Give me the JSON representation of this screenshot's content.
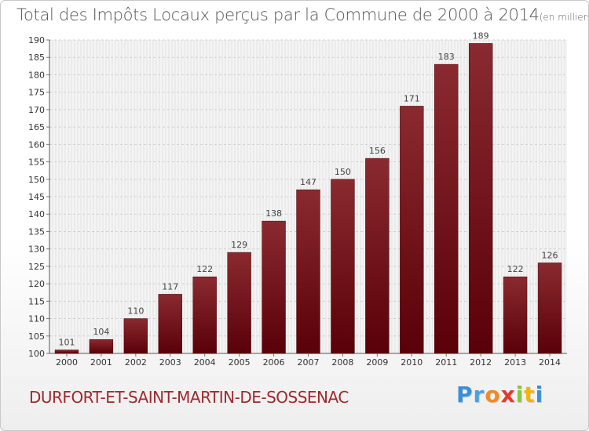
{
  "header": {
    "title": "Total des Impôts Locaux perçus par la Commune de 2000 à 2014",
    "unit": "(en milliers d'€)"
  },
  "footer": {
    "commune": "DURFORT-ET-SAINT-MARTIN-DE-SOSSENAC",
    "logo_text": "Proxiti",
    "logo_letters": [
      "P",
      "r",
      "o",
      "x",
      "i",
      "t",
      "i"
    ],
    "logo_colors": [
      "#3b8fd6",
      "#4aa3df",
      "#f08a24",
      "#e23b2e",
      "#8cc63f",
      "#f4b400",
      "#3b8fd6"
    ]
  },
  "chart_data": {
    "type": "bar",
    "title": "Total des Impôts Locaux perçus par la Commune de 2000 à 2014",
    "xlabel": "",
    "ylabel": "",
    "categories": [
      "2000",
      "2001",
      "2002",
      "2003",
      "2004",
      "2005",
      "2006",
      "2007",
      "2008",
      "2009",
      "2010",
      "2011",
      "2012",
      "2013",
      "2014"
    ],
    "values": [
      101,
      104,
      110,
      117,
      122,
      129,
      138,
      147,
      150,
      156,
      171,
      183,
      189,
      122,
      126
    ],
    "ylim": [
      100,
      190
    ],
    "yticks": [
      100,
      105,
      110,
      115,
      120,
      125,
      130,
      135,
      140,
      145,
      150,
      155,
      160,
      165,
      170,
      175,
      180,
      185,
      190
    ],
    "grid": true,
    "bar_color_top": "#8a2a30",
    "bar_color_bottom": "#5a0008"
  }
}
